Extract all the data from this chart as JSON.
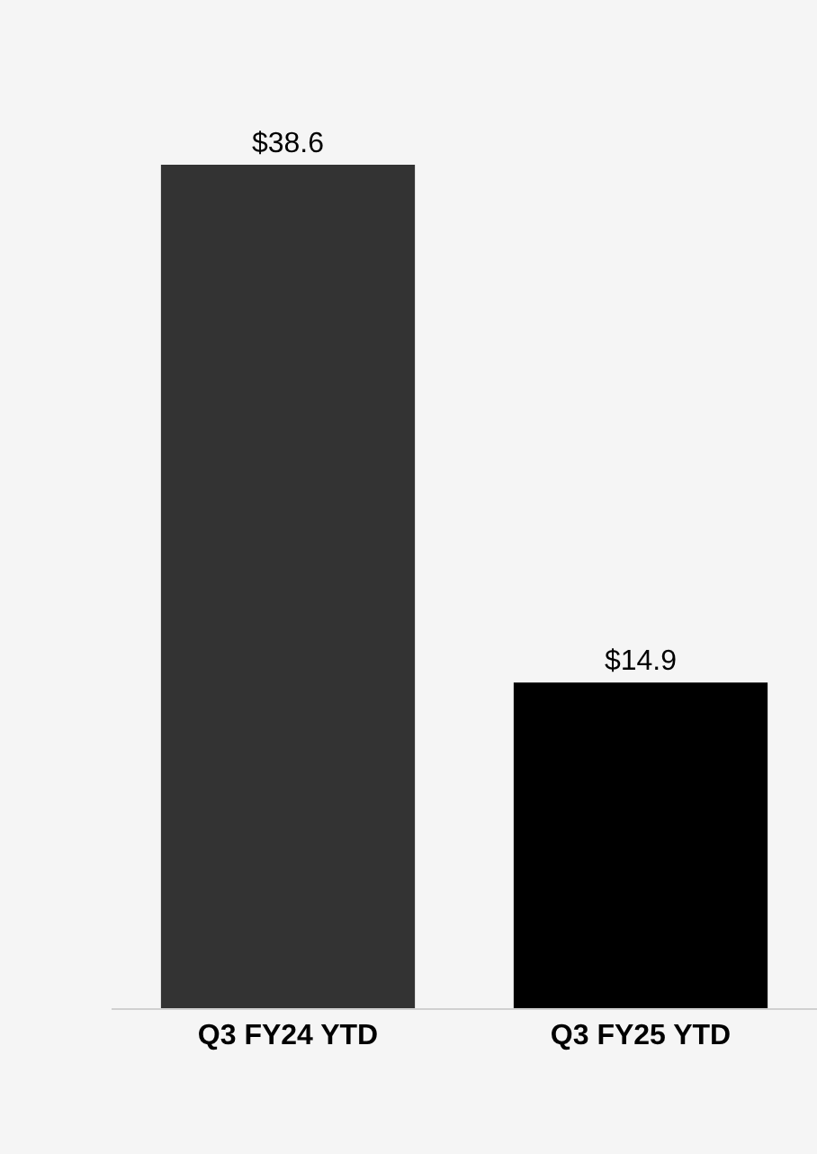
{
  "chart_data": {
    "type": "bar",
    "categories": [
      "Q3 FY24 YTD",
      "Q3 FY25 YTD"
    ],
    "values": [
      38.6,
      14.9
    ],
    "colors": [
      "#333333",
      "#000000"
    ],
    "value_labels": [
      "$38.6",
      "$14.9"
    ],
    "grid": false,
    "legend": false
  }
}
